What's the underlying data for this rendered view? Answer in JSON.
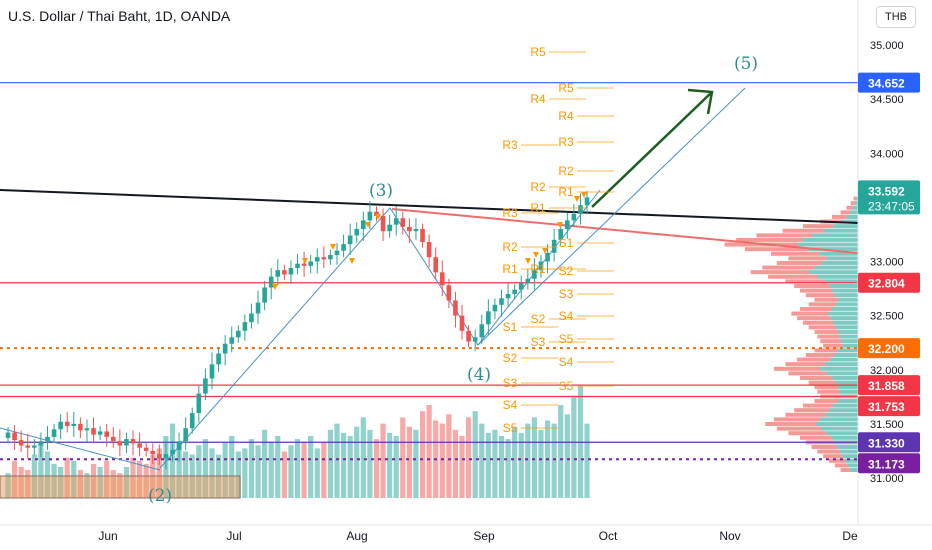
{
  "header": {
    "title": "U.S. Dollar / Thai Baht, 1D, OANDA",
    "currency": "THB"
  },
  "colors": {
    "up": "#26a69a",
    "down": "#ef5350",
    "pivot": "#ff9800",
    "blue_level": "#2962ff",
    "purple_level": "#7b1fa2",
    "red_level": "#f23645",
    "trendline": "#131722",
    "wave_label": "#2e8b93",
    "arrow": "#1b5e20"
  },
  "chart_data": {
    "type": "candlestick",
    "title": "U.S. Dollar / Thai Baht, 1D, OANDA",
    "ylim": [
      30.55,
      35.4
    ],
    "y_ticks": [
      "35.000",
      "34.500",
      "34.000",
      "33.500",
      "33.000",
      "32.500",
      "32.000",
      "31.500",
      "31.000"
    ],
    "x_ticks": [
      "Jun",
      "Jul",
      "Aug",
      "Sep",
      "Oct",
      "Nov",
      "De"
    ],
    "grid": false,
    "price_badges": [
      {
        "value": "34.652",
        "color": "#2962ff"
      },
      {
        "value": "33.592",
        "sub": "23:47:05",
        "color": "#26a69a"
      },
      {
        "value": "32.804",
        "color": "#f23645"
      },
      {
        "value": "32.200",
        "color": "#ff6d00"
      },
      {
        "value": "31.858",
        "color": "#f23645"
      },
      {
        "value": "31.753",
        "color": "#f23645"
      },
      {
        "value": "31.330",
        "color": "#5e35b1"
      },
      {
        "value": "31.173",
        "color": "#7b1fa2"
      }
    ],
    "horizontal_levels": [
      {
        "value": 34.652,
        "style": "solid",
        "color": "#2962ff"
      },
      {
        "value": 32.804,
        "style": "solid",
        "color": "#f23645"
      },
      {
        "value": 32.2,
        "style": "dotted",
        "color": "#ff6d00"
      },
      {
        "value": 31.858,
        "style": "solid",
        "color": "#f23645"
      },
      {
        "value": 31.753,
        "style": "solid",
        "color": "#f23645"
      },
      {
        "value": 31.33,
        "style": "solid",
        "color": "#5e35b1"
      },
      {
        "value": 31.173,
        "style": "dotted",
        "color": "#7b1fa2"
      }
    ],
    "wave_labels": [
      "(2)",
      "(3)",
      "(4)",
      "(5)"
    ],
    "pivot_labels": [
      "R5",
      "R5",
      "R4",
      "R4",
      "R3",
      "R3",
      "R2",
      "R1",
      "R2",
      "R1",
      "R3",
      "R1",
      "R2",
      "S1",
      "R1",
      "S2",
      "S3",
      "S1",
      "S4",
      "S2",
      "S5",
      "S3",
      "S2",
      "S4",
      "S3",
      "S5",
      "S4",
      "S5"
    ],
    "series_close": [
      31.42,
      31.35,
      31.3,
      31.28,
      31.3,
      31.34,
      31.38,
      31.45,
      31.52,
      31.48,
      31.5,
      31.44,
      31.46,
      31.4,
      31.43,
      31.38,
      31.34,
      31.3,
      31.36,
      31.32,
      31.28,
      31.25,
      31.22,
      31.18,
      31.22,
      31.26,
      31.34,
      31.46,
      31.6,
      31.78,
      31.92,
      32.05,
      32.15,
      32.24,
      32.3,
      32.36,
      32.44,
      32.52,
      32.62,
      32.76,
      32.86,
      32.92,
      32.88,
      32.94,
      32.98,
      32.96,
      33.0,
      33.04,
      33.02,
      33.06,
      33.1,
      33.16,
      33.24,
      33.3,
      33.38,
      33.46,
      33.42,
      33.28,
      33.34,
      33.4,
      33.32,
      33.28,
      33.3,
      33.18,
      33.04,
      32.9,
      32.78,
      32.64,
      32.5,
      32.36,
      32.26,
      32.3,
      32.42,
      32.54,
      32.6,
      32.66,
      32.7,
      32.74,
      32.8,
      32.84,
      32.92,
      33.0,
      33.08,
      33.2,
      33.3,
      33.38,
      33.44,
      33.52,
      33.592
    ],
    "volume": [
      8,
      12,
      10,
      9,
      14,
      18,
      15,
      11,
      10,
      13,
      12,
      9,
      8,
      11,
      10,
      12,
      9,
      8,
      10,
      13,
      12,
      11,
      14,
      16,
      20,
      24,
      18,
      15,
      14,
      17,
      19,
      16,
      14,
      18,
      20,
      15,
      16,
      19,
      17,
      22,
      18,
      20,
      15,
      17,
      19,
      18,
      20,
      16,
      18,
      22,
      24,
      21,
      20,
      23,
      26,
      22,
      19,
      24,
      21,
      20,
      26,
      23,
      22,
      28,
      30,
      25,
      24,
      27,
      22,
      20,
      26,
      28,
      24,
      21,
      22,
      20,
      19,
      23,
      21,
      24,
      26,
      22,
      25,
      24,
      30,
      27,
      33,
      36,
      24
    ],
    "volume_profile": [
      3,
      5,
      8,
      12,
      18,
      26,
      38,
      52,
      70,
      84,
      92,
      78,
      60,
      48,
      56,
      66,
      74,
      62,
      50,
      44,
      40,
      36,
      30,
      34,
      40,
      46,
      42,
      38,
      34,
      30,
      28,
      26,
      24,
      30,
      36,
      42,
      50,
      58,
      48,
      40,
      34,
      30,
      28,
      26,
      30,
      38,
      44,
      50,
      58,
      64,
      56,
      48,
      40,
      36,
      32,
      28,
      24,
      20,
      16,
      12
    ]
  }
}
